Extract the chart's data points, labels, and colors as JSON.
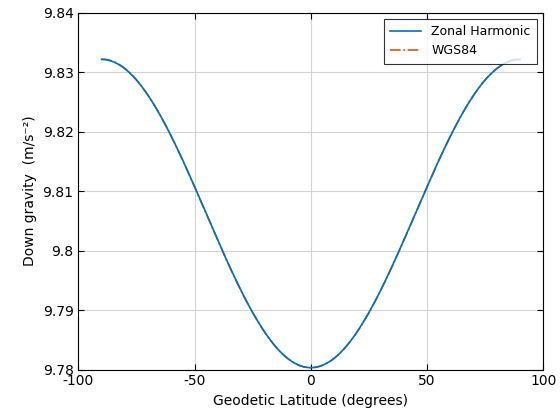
{
  "title": "",
  "xlabel": "Geodetic Latitude (degrees)",
  "ylabel": "Down gravity  (m/s⁻²)",
  "xlim": [
    -100,
    100
  ],
  "ylim": [
    9.78,
    9.84
  ],
  "yticks": [
    9.78,
    9.79,
    9.8,
    9.81,
    9.82,
    9.83,
    9.84
  ],
  "ytick_labels": [
    "9.78",
    "9.79",
    "9.8",
    "9.81",
    "9.82",
    "9.83",
    "9.84"
  ],
  "xticks": [
    -100,
    -50,
    0,
    50,
    100
  ],
  "xtick_labels": [
    "-100",
    "-50",
    "0",
    "50",
    "100"
  ],
  "zonal_color": "#0072BD",
  "wgs84_color": "#D95319",
  "legend_labels": [
    "Zonal Harmonic",
    "WGS84"
  ],
  "background_color": "#FFFFFF",
  "grid_color": "#D3D3D3",
  "figsize": [
    5.6,
    4.2
  ],
  "dpi": 100
}
